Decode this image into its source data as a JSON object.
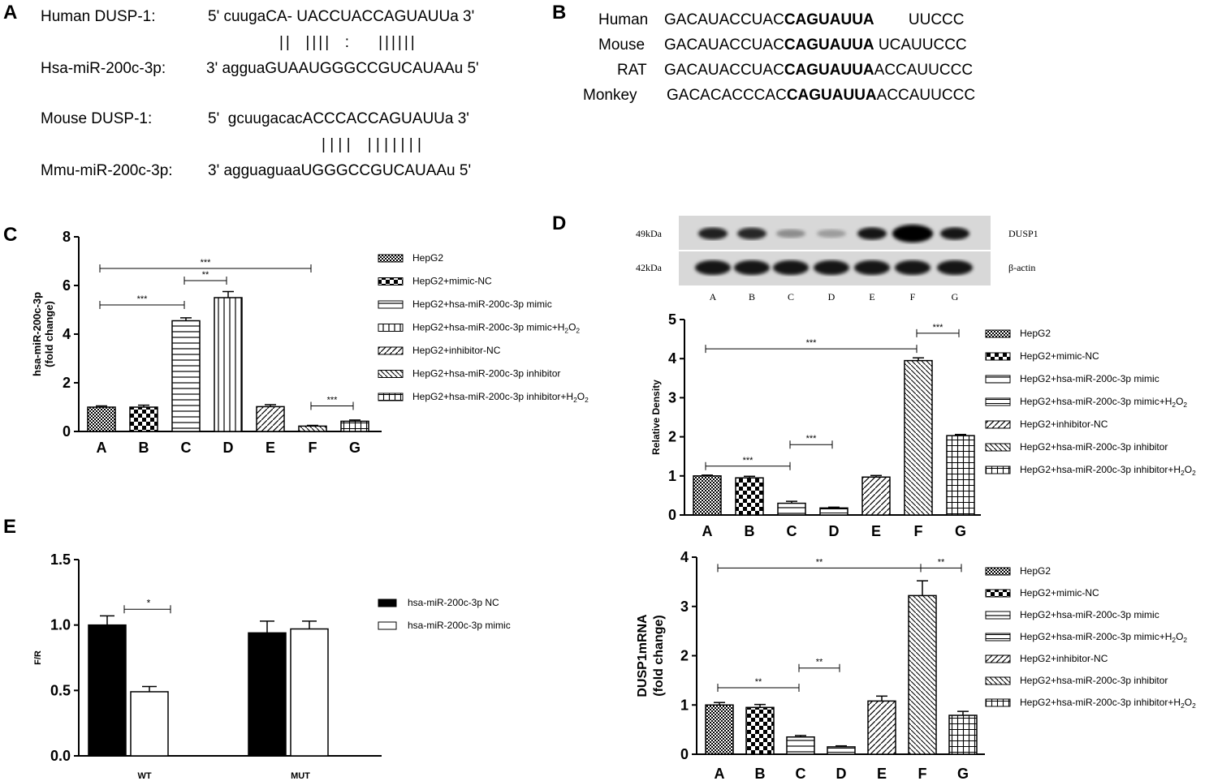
{
  "panels": {
    "A": {
      "letter": "A",
      "rows": [
        {
          "name": "Human DUSP-1:",
          "seq": "5' cuugaCA- UACCUACCAGUAUUa 3'"
        },
        {
          "name": "",
          "seq": "||  ||||  :    ||||||"
        },
        {
          "name": "Hsa-miR-200c-3p:",
          "seq": "3' agguaGUAAUGGGCCGUCAUAAu 5'"
        },
        {
          "name": "Mouse DUSP-1:",
          "seq": "5'  gcuugacacACCCACCAGUAUUa 3'"
        },
        {
          "name": "",
          "seq": "| | | |    | | | | | | |"
        },
        {
          "name": "Mmu-miR-200c-3p:",
          "seq": "3' agguaguaaUGGGCCGUCAUAAu 5'"
        }
      ]
    },
    "B": {
      "letter": "B",
      "rows": [
        {
          "species": "Human",
          "pre": "GACAUACCUAC",
          "bold": "CAGUAUUA",
          "post": "        UUCCC"
        },
        {
          "species": "Mouse",
          "pre": "GACAUACCUAC",
          "bold": "CAGUAUUA",
          "post": " UCAUUCCC"
        },
        {
          "species": "RAT",
          "pre": "GACAUACCUAC",
          "bold": "CAGUAUUA",
          "post": "ACCAUUCCC"
        },
        {
          "species": "Monkey",
          "pre": "GACACACCCAC",
          "bold": "CAGUAUUA",
          "post": "ACCAUUCCC"
        }
      ]
    },
    "C_letter": "C",
    "D_letter": "D",
    "E_letter": "E"
  },
  "blot": {
    "labels_left": [
      "49kDa",
      "42kDa"
    ],
    "labels_right": [
      "DUSP1",
      "β-actin"
    ],
    "lanes": [
      "A",
      "B",
      "C",
      "D",
      "E",
      "F",
      "G"
    ],
    "dusp1_intensity": [
      0.85,
      0.82,
      0.35,
      0.28,
      0.9,
      1.0,
      0.9
    ],
    "actin_intensity": [
      0.9,
      0.9,
      0.9,
      0.9,
      0.9,
      0.9,
      0.9
    ]
  },
  "legend7": [
    "HepG2",
    "HepG2+mimic-NC",
    "HepG2+hsa-miR-200c-3p mimic",
    "HepG2+hsa-miR-200c-3p mimic+H2O2",
    "HepG2+inhibitor-NC",
    "HepG2+hsa-miR-200c-3p inhibitor",
    "HepG2+hsa-miR-200c-3p inhibitor+H2O2"
  ],
  "chart_data": [
    {
      "id": "C",
      "type": "bar",
      "categories": [
        "A",
        "B",
        "C",
        "D",
        "E",
        "F",
        "G"
      ],
      "values": [
        1.0,
        1.0,
        4.55,
        5.5,
        1.02,
        0.22,
        0.42
      ],
      "errors": [
        0.05,
        0.08,
        0.12,
        0.25,
        0.08,
        0.03,
        0.05
      ],
      "ylabel": "hsa-miR-200c-3p (fold change)",
      "ylim": [
        0,
        8
      ],
      "yticks": [
        0,
        2,
        4,
        6,
        8
      ],
      "significance": [
        {
          "from": 0,
          "to": 5,
          "level": 6.7,
          "label": "***"
        },
        {
          "from": 2,
          "to": 3,
          "level": 6.2,
          "label": "**"
        },
        {
          "from": 0,
          "to": 2,
          "level": 5.2,
          "label": "***"
        },
        {
          "from": 5,
          "to": 6,
          "level": 1.05,
          "label": "***"
        }
      ]
    },
    {
      "id": "D",
      "type": "bar",
      "categories": [
        "A",
        "B",
        "C",
        "D",
        "E",
        "F",
        "G"
      ],
      "values": [
        1.0,
        0.95,
        0.3,
        0.18,
        0.97,
        3.95,
        2.03
      ],
      "errors": [
        0.02,
        0.04,
        0.05,
        0.02,
        0.04,
        0.07,
        0.03
      ],
      "ylabel": "Relative Density",
      "ylim": [
        0,
        5
      ],
      "yticks": [
        0,
        1,
        2,
        3,
        4,
        5
      ],
      "significance": [
        {
          "from": 0,
          "to": 5,
          "level": 4.25,
          "label": "***"
        },
        {
          "from": 5,
          "to": 6,
          "level": 4.65,
          "label": "***"
        },
        {
          "from": 0,
          "to": 2,
          "level": 1.25,
          "label": "***"
        },
        {
          "from": 2,
          "to": 3,
          "level": 1.8,
          "label": "***"
        }
      ]
    },
    {
      "id": "D2",
      "type": "bar",
      "categories": [
        "A",
        "B",
        "C",
        "D",
        "E",
        "F",
        "G"
      ],
      "values": [
        1.0,
        0.95,
        0.35,
        0.15,
        1.08,
        3.22,
        0.79
      ],
      "errors": [
        0.05,
        0.06,
        0.03,
        0.02,
        0.1,
        0.3,
        0.08
      ],
      "ylabel": "DUSP1mRNA (fold change)",
      "ylim": [
        0,
        4
      ],
      "yticks": [
        0,
        1,
        2,
        3,
        4
      ],
      "significance": [
        {
          "from": 0,
          "to": 5,
          "level": 3.78,
          "label": "**"
        },
        {
          "from": 5,
          "to": 6,
          "level": 3.78,
          "label": "**"
        },
        {
          "from": 0,
          "to": 2,
          "level": 1.35,
          "label": "**"
        },
        {
          "from": 2,
          "to": 3,
          "level": 1.75,
          "label": "**"
        }
      ]
    },
    {
      "id": "E",
      "type": "bar",
      "categories": [
        "WT",
        "MUT"
      ],
      "series": [
        {
          "name": "hsa-miR-200c-3p NC",
          "values": [
            1.0,
            0.94
          ],
          "errors": [
            0.07,
            0.09
          ],
          "color": "#000000"
        },
        {
          "name": "hsa-miR-200c-3p mimic",
          "values": [
            0.49,
            0.97
          ],
          "errors": [
            0.04,
            0.06
          ],
          "color": "#ffffff"
        }
      ],
      "ylabel": "F/R",
      "ylim": [
        0,
        1.5
      ],
      "yticks": [
        "0.0",
        "0.5",
        "1.0",
        "1.5"
      ],
      "significance": [
        {
          "label": "*",
          "level": 1.12
        }
      ]
    }
  ]
}
